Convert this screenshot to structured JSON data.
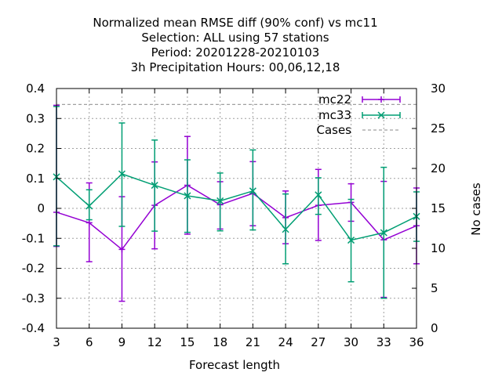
{
  "chart_data": {
    "type": "line",
    "title_lines": [
      "Normalized mean RMSE diff (90% conf) vs mc11",
      "Selection: ALL using    57 stations",
      "Period: 20201228-20210103",
      "3h Precipitation   Hours:  00,06,12,18"
    ],
    "xlabel": "Forecast length",
    "ylabel": "",
    "y2label": "No cases",
    "xlim": [
      3,
      36
    ],
    "ylim": [
      -0.4,
      0.4
    ],
    "y2lim": [
      0,
      30
    ],
    "x": [
      3,
      6,
      9,
      12,
      15,
      18,
      21,
      24,
      27,
      30,
      33,
      36
    ],
    "xticks": [
      "3",
      "6",
      "9",
      "12",
      "15",
      "18",
      "21",
      "24",
      "27",
      "30",
      "33",
      "36"
    ],
    "yticks": [
      "0.4",
      "0.3",
      "0.2",
      "0.1",
      "0",
      "-0.1",
      "-0.2",
      "-0.3",
      "-0.4"
    ],
    "yticks_values": [
      0.4,
      0.3,
      0.2,
      0.1,
      0,
      -0.1,
      -0.2,
      -0.3,
      -0.4
    ],
    "y2ticks": [
      "30",
      "25",
      "20",
      "15",
      "10",
      "5",
      "0"
    ],
    "y2ticks_values": [
      30,
      25,
      20,
      15,
      10,
      5,
      0
    ],
    "grid": true,
    "legend_position": "top-right",
    "series": [
      {
        "name": "mc22",
        "color": "#9400d3",
        "marker": "plus",
        "values": [
          -0.013,
          -0.048,
          -0.137,
          0.01,
          0.077,
          0.012,
          0.05,
          -0.031,
          0.01,
          0.02,
          -0.105,
          -0.058
        ],
        "err_low": [
          -0.127,
          -0.178,
          -0.31,
          -0.135,
          -0.086,
          -0.069,
          -0.058,
          -0.118,
          -0.107,
          -0.043,
          -0.297,
          -0.185
        ],
        "err_high": [
          0.344,
          0.085,
          0.039,
          0.155,
          0.24,
          0.089,
          0.156,
          0.058,
          0.13,
          0.082,
          0.09,
          0.068
        ]
      },
      {
        "name": "mc33",
        "color": "#009e73",
        "marker": "cross",
        "values": [
          0.105,
          0.008,
          0.115,
          0.077,
          0.042,
          0.025,
          0.058,
          -0.07,
          0.045,
          -0.106,
          -0.081,
          -0.027
        ],
        "err_low": [
          -0.125,
          -0.038,
          -0.06,
          -0.076,
          -0.08,
          -0.075,
          -0.072,
          -0.185,
          -0.02,
          -0.245,
          -0.3,
          -0.11
        ],
        "err_high": [
          0.34,
          0.062,
          0.285,
          0.228,
          0.162,
          0.118,
          0.195,
          0.048,
          0.102,
          0.03,
          0.137,
          0.055
        ]
      },
      {
        "name": "Cases",
        "color": "#a0a0a0",
        "style": "dashed",
        "axis": "y2",
        "values": [
          28,
          28,
          28,
          28,
          28,
          28,
          28,
          28,
          28,
          28,
          28,
          28
        ]
      }
    ]
  }
}
